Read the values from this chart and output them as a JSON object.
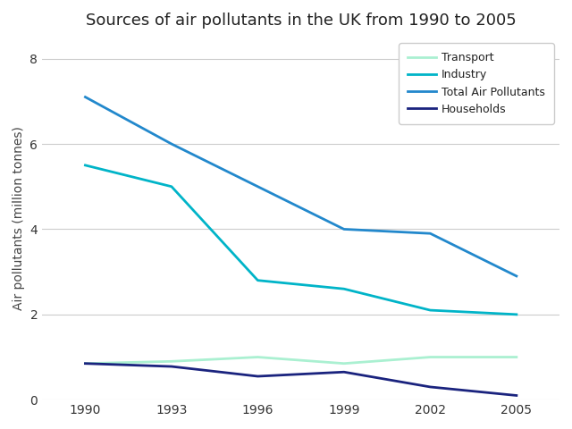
{
  "title": "Sources of air pollutants in the UK from 1990 to 2005",
  "ylabel": "Air pollutants (million tonnes)",
  "years": [
    1990,
    1993,
    1996,
    1999,
    2002,
    2005
  ],
  "series": {
    "Transport": {
      "values": [
        0.85,
        0.9,
        1.0,
        0.85,
        1.0,
        1.0
      ],
      "color": "#aaf0d1",
      "linewidth": 2.0
    },
    "Industry": {
      "values": [
        5.5,
        5.0,
        2.8,
        2.6,
        2.1,
        2.0
      ],
      "color": "#00b4c8",
      "linewidth": 2.0
    },
    "Total Air Pollutants": {
      "values": [
        7.1,
        6.0,
        5.0,
        4.0,
        3.9,
        2.9
      ],
      "color": "#2288cc",
      "linewidth": 2.0
    },
    "Households": {
      "values": [
        0.85,
        0.78,
        0.55,
        0.65,
        0.3,
        0.1
      ],
      "color": "#1a237e",
      "linewidth": 2.0
    }
  },
  "ylim": [
    0,
    8.5
  ],
  "yticks": [
    0,
    2,
    4,
    6,
    8
  ],
  "legend_labels": [
    "Transport",
    "Industry",
    "Total Air Pollutants",
    "Households"
  ],
  "background_color": "#ffffff",
  "grid_color": "#cccccc",
  "title_fontsize": 13,
  "axis_fontsize": 10,
  "legend_fontsize": 9
}
